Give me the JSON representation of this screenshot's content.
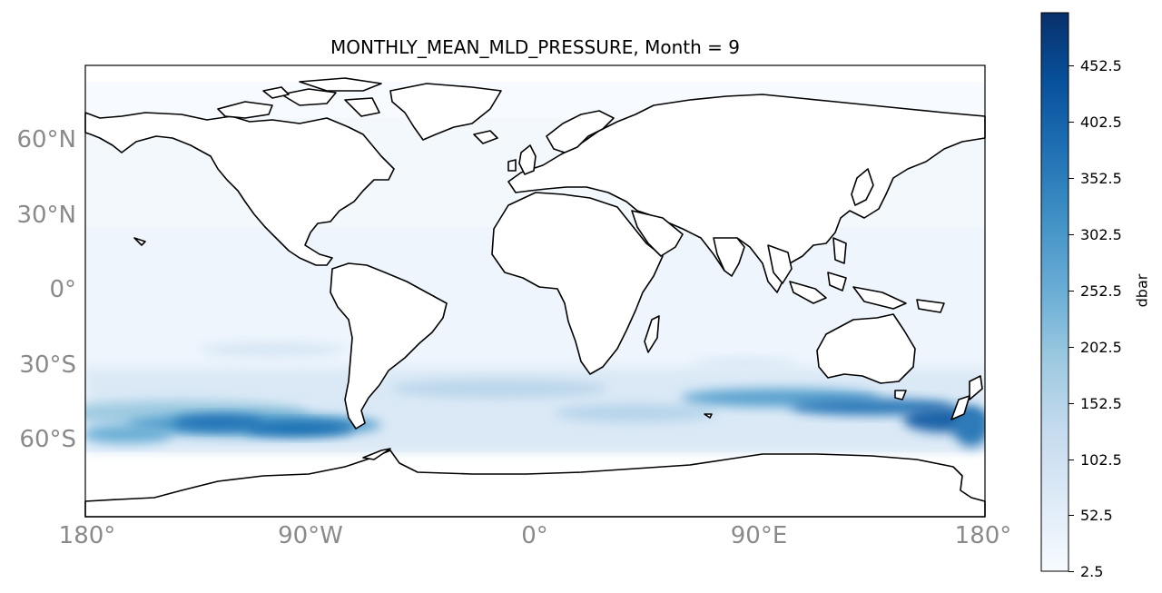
{
  "map": {
    "title": "MONTHLY_MEAN_MLD_PRESSURE, Month = 9",
    "variable": "MONTHLY_MEAN_MLD_PRESSURE",
    "month": 9,
    "projection": "PlateCarree",
    "extent_lon": [
      -180,
      180
    ],
    "extent_lat": [
      -90,
      90
    ],
    "lat_labels": [
      "60°N",
      "30°N",
      "0°",
      "30°S",
      "60°S"
    ],
    "lon_labels": [
      "180°",
      "90°W",
      "0°",
      "90°E",
      "180°"
    ],
    "colormap": "Blues",
    "colorbar": {
      "label": "dbar",
      "min": 2.5,
      "max": 500,
      "ticks": [
        "2.5",
        "52.5",
        "102.5",
        "152.5",
        "202.5",
        "252.5",
        "302.5",
        "352.5",
        "402.5",
        "452.5"
      ]
    },
    "colors": {
      "land": "#ffffff",
      "coastline": "#000000",
      "low": "#f7fbff",
      "high": "#08306b",
      "tick_label": "#8a8a8a"
    }
  }
}
